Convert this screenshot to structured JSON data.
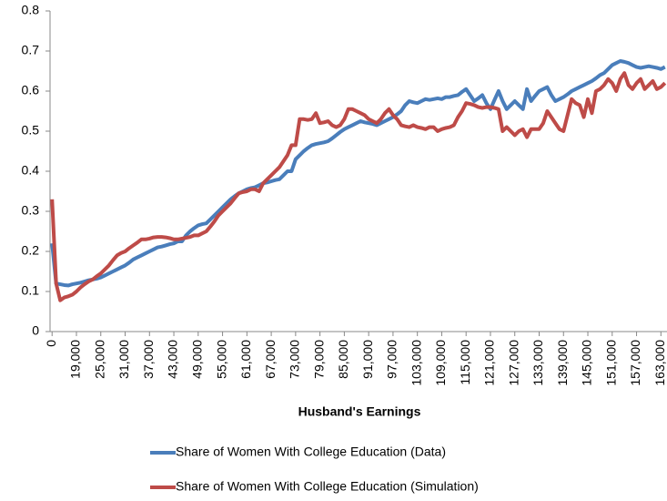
{
  "chart_data": {
    "type": "line",
    "xlabel": "Husband's Earnings",
    "categories": [
      "0",
      null,
      null,
      null,
      null,
      null,
      "19,000",
      null,
      null,
      null,
      null,
      null,
      "25,000",
      null,
      null,
      null,
      null,
      null,
      "31,000",
      null,
      null,
      null,
      null,
      null,
      "37,000",
      null,
      null,
      null,
      null,
      null,
      "43,000",
      null,
      null,
      null,
      null,
      null,
      "49,000",
      null,
      null,
      null,
      null,
      null,
      "55,000",
      null,
      null,
      null,
      null,
      null,
      "61,000",
      null,
      null,
      null,
      null,
      null,
      "67,000",
      null,
      null,
      null,
      null,
      null,
      "73,000",
      null,
      null,
      null,
      null,
      null,
      "79,000",
      null,
      null,
      null,
      null,
      null,
      "85,000",
      null,
      null,
      null,
      null,
      null,
      "91,000",
      null,
      null,
      null,
      null,
      null,
      "97,000",
      null,
      null,
      null,
      null,
      null,
      "103,000",
      null,
      null,
      null,
      null,
      null,
      "109,000",
      null,
      null,
      null,
      null,
      null,
      "115,000",
      null,
      null,
      null,
      null,
      null,
      "121,000",
      null,
      null,
      null,
      null,
      null,
      "127,000",
      null,
      null,
      null,
      null,
      null,
      "133,000",
      null,
      null,
      null,
      null,
      null,
      "139,000",
      null,
      null,
      null,
      null,
      null,
      "145,000",
      null,
      null,
      null,
      null,
      null,
      "151,000",
      null,
      null,
      null,
      null,
      null,
      "157,000",
      null,
      null,
      null,
      null,
      null,
      "163,000",
      null
    ],
    "series": [
      {
        "name": "Share of Women With College Education (Data)",
        "color": "#4a7ebb",
        "values": [
          0.22,
          0.12,
          0.118,
          0.116,
          0.115,
          0.118,
          0.12,
          0.122,
          0.125,
          0.128,
          0.13,
          0.132,
          0.135,
          0.14,
          0.145,
          0.15,
          0.155,
          0.16,
          0.165,
          0.172,
          0.18,
          0.185,
          0.19,
          0.195,
          0.2,
          0.205,
          0.21,
          0.212,
          0.215,
          0.218,
          0.22,
          0.225,
          0.225,
          0.24,
          0.25,
          0.258,
          0.265,
          0.268,
          0.27,
          0.28,
          0.29,
          0.3,
          0.31,
          0.32,
          0.33,
          0.338,
          0.345,
          0.35,
          0.355,
          0.358,
          0.36,
          0.365,
          0.37,
          0.372,
          0.375,
          0.378,
          0.38,
          0.39,
          0.4,
          0.4,
          0.43,
          0.44,
          0.45,
          0.458,
          0.465,
          0.468,
          0.47,
          0.472,
          0.475,
          0.482,
          0.49,
          0.498,
          0.505,
          0.51,
          0.515,
          0.52,
          0.525,
          0.522,
          0.52,
          0.518,
          0.515,
          0.52,
          0.525,
          0.53,
          0.535,
          0.542,
          0.55,
          0.565,
          0.575,
          0.572,
          0.57,
          0.575,
          0.58,
          0.578,
          0.58,
          0.582,
          0.58,
          0.585,
          0.585,
          0.588,
          0.59,
          0.598,
          0.605,
          0.59,
          0.575,
          0.582,
          0.59,
          0.57,
          0.555,
          0.578,
          0.6,
          0.575,
          0.555,
          0.565,
          0.575,
          0.565,
          0.555,
          0.605,
          0.575,
          0.588,
          0.6,
          0.605,
          0.61,
          0.59,
          0.575,
          0.58,
          0.585,
          0.592,
          0.6,
          0.605,
          0.61,
          0.615,
          0.62,
          0.625,
          0.632,
          0.64,
          0.645,
          0.655,
          0.665,
          0.67,
          0.675,
          0.673,
          0.67,
          0.665,
          0.66,
          0.658,
          0.66,
          0.662,
          0.66,
          0.658,
          0.655,
          0.66
        ]
      },
      {
        "name": "Share of Women With College Education (Simulation)",
        "color": "#be4b48",
        "values": [
          0.33,
          0.12,
          0.078,
          0.085,
          0.088,
          0.092,
          0.1,
          0.11,
          0.118,
          0.125,
          0.13,
          0.138,
          0.145,
          0.155,
          0.165,
          0.178,
          0.19,
          0.196,
          0.2,
          0.208,
          0.215,
          0.222,
          0.23,
          0.23,
          0.232,
          0.235,
          0.236,
          0.236,
          0.235,
          0.233,
          0.23,
          0.23,
          0.232,
          0.234,
          0.236,
          0.24,
          0.24,
          0.245,
          0.25,
          0.262,
          0.275,
          0.29,
          0.3,
          0.31,
          0.32,
          0.333,
          0.345,
          0.348,
          0.35,
          0.355,
          0.355,
          0.35,
          0.37,
          0.38,
          0.39,
          0.4,
          0.41,
          0.425,
          0.44,
          0.465,
          0.465,
          0.53,
          0.53,
          0.528,
          0.53,
          0.545,
          0.52,
          0.522,
          0.525,
          0.515,
          0.51,
          0.515,
          0.53,
          0.555,
          0.555,
          0.55,
          0.545,
          0.54,
          0.53,
          0.525,
          0.52,
          0.53,
          0.545,
          0.555,
          0.54,
          0.53,
          0.515,
          0.512,
          0.51,
          0.515,
          0.51,
          0.508,
          0.505,
          0.51,
          0.51,
          0.5,
          0.505,
          0.508,
          0.51,
          0.515,
          0.535,
          0.55,
          0.57,
          0.568,
          0.565,
          0.56,
          0.558,
          0.56,
          0.56,
          0.558,
          0.555,
          0.5,
          0.51,
          0.5,
          0.49,
          0.5,
          0.505,
          0.485,
          0.505,
          0.505,
          0.505,
          0.52,
          0.55,
          0.535,
          0.52,
          0.505,
          0.5,
          0.54,
          0.58,
          0.57,
          0.565,
          0.535,
          0.58,
          0.545,
          0.6,
          0.605,
          0.615,
          0.63,
          0.62,
          0.6,
          0.63,
          0.645,
          0.615,
          0.605,
          0.62,
          0.63,
          0.605,
          0.615,
          0.625,
          0.605,
          0.61,
          0.62
        ]
      }
    ],
    "ylim": [
      0,
      0.8
    ],
    "yticks": [
      0,
      0.1,
      0.2,
      0.3,
      0.4,
      0.5,
      0.6,
      0.7,
      0.8
    ],
    "grid": false,
    "legend": "bottom"
  }
}
